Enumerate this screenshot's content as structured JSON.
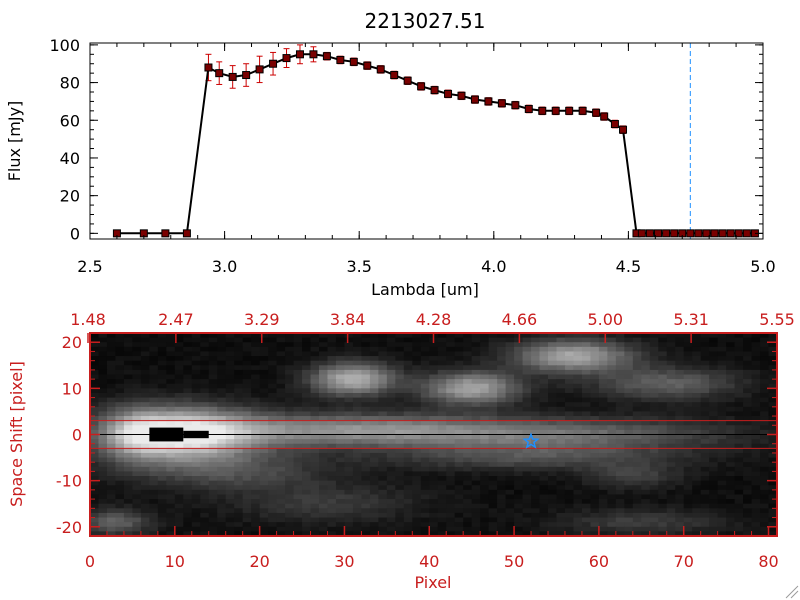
{
  "colors": {
    "spectrum_line": "#000000",
    "marker_fill": "#7a0000",
    "error_bar": "#cc0000",
    "cutoff_line": "#1e90ff",
    "image_axis": "#c81e1e",
    "aperture_line": "#c81e1e",
    "source_marker": "#1e90ff"
  },
  "chart_data": [
    {
      "type": "line",
      "title": "2213027.51",
      "xlabel": "Lambda [um]",
      "ylabel": "Flux [mJy]",
      "xlim": [
        2.5,
        5.0
      ],
      "ylim": [
        -3,
        101
      ],
      "x_ticks": [
        "2.5",
        "3.0",
        "3.5",
        "4.0",
        "4.5",
        "5.0"
      ],
      "y_ticks": [
        "0",
        "20",
        "40",
        "60",
        "80",
        "100"
      ],
      "cutoff_wavelength": 4.73,
      "series": [
        {
          "x": [
            2.6,
            2.7,
            2.78,
            2.86,
            2.94,
            2.98,
            3.03,
            3.08,
            3.13,
            3.18,
            3.23,
            3.28,
            3.33,
            3.38,
            3.43,
            3.48,
            3.53,
            3.58,
            3.63,
            3.68,
            3.73,
            3.78,
            3.83,
            3.88,
            3.93,
            3.98,
            4.03,
            4.08,
            4.13,
            4.18,
            4.23,
            4.28,
            4.33,
            4.38,
            4.41,
            4.45,
            4.48,
            4.53,
            4.55,
            4.58,
            4.61,
            4.64,
            4.67,
            4.7,
            4.73,
            4.76,
            4.79,
            4.82,
            4.85,
            4.88,
            4.91,
            4.94,
            4.97
          ],
          "y": [
            0,
            0,
            0,
            0,
            88,
            85,
            83,
            84,
            87,
            90,
            93,
            95,
            95,
            94,
            92,
            91,
            89,
            87,
            84,
            81,
            78,
            76,
            74,
            73,
            71,
            70,
            69,
            68,
            66,
            65,
            65,
            65,
            65,
            64,
            62,
            58,
            55,
            0,
            0,
            0,
            0,
            0,
            0,
            0,
            0,
            0,
            0,
            0,
            0,
            0,
            0,
            0,
            0
          ],
          "err": [
            0,
            0,
            0,
            0,
            7,
            6,
            6,
            6,
            7,
            6,
            5,
            5,
            4,
            2,
            2,
            2,
            2,
            2,
            2,
            2,
            2,
            2,
            2,
            2,
            2,
            2,
            2,
            2,
            2,
            2,
            2,
            2,
            2,
            2,
            2,
            2,
            2,
            0,
            0,
            0,
            0,
            0,
            0,
            0,
            0,
            0,
            0,
            0,
            0,
            0,
            0,
            0,
            0
          ]
        }
      ]
    },
    {
      "type": "heatmap",
      "xlabel": "Pixel",
      "ylabel": "Space Shift [pixel]",
      "top_xlabel": "",
      "xlim": [
        0,
        81
      ],
      "ylim": [
        -22,
        22
      ],
      "x_ticks": [
        "0",
        "10",
        "20",
        "30",
        "40",
        "50",
        "60",
        "70",
        "80"
      ],
      "y_ticks": [
        "-20",
        "-10",
        "0",
        "10",
        "20"
      ],
      "top_ticks": [
        "1.48",
        "2.47",
        "3.29",
        "3.84",
        "4.28",
        "4.66",
        "5.00",
        "5.31",
        "5.55"
      ],
      "aperture_y": [
        3,
        -3
      ],
      "trace_y": 0,
      "source_marker": {
        "x": 52,
        "y": -1.5
      },
      "sources": [
        {
          "x": 11,
          "y": 0,
          "sx": 6,
          "sy": 4,
          "amp": 0.95
        },
        {
          "x": 30,
          "y": 1,
          "sx": 12,
          "sy": 2.5,
          "amp": 0.5
        },
        {
          "x": 55,
          "y": 0,
          "sx": 14,
          "sy": 2.5,
          "amp": 0.4
        },
        {
          "x": 31,
          "y": 12,
          "sx": 3.5,
          "sy": 2.5,
          "amp": 0.7
        },
        {
          "x": 45,
          "y": 10,
          "sx": 4,
          "sy": 2.5,
          "amp": 0.65
        },
        {
          "x": 57,
          "y": 17,
          "sx": 5,
          "sy": 2.5,
          "amp": 0.65
        },
        {
          "x": 68,
          "y": 11,
          "sx": 6,
          "sy": 2.5,
          "amp": 0.35
        },
        {
          "x": 5,
          "y": 0,
          "sx": 3,
          "sy": 4,
          "amp": 0.35
        },
        {
          "x": 17,
          "y": -8,
          "sx": 8,
          "sy": 3,
          "amp": 0.25
        },
        {
          "x": 52,
          "y": -5,
          "sx": 12,
          "sy": 2,
          "amp": 0.25
        },
        {
          "x": 3,
          "y": -19,
          "sx": 3,
          "sy": 2,
          "amp": 0.35
        },
        {
          "x": 28,
          "y": -15,
          "sx": 8,
          "sy": 3,
          "amp": 0.18
        },
        {
          "x": 64,
          "y": -9,
          "sx": 4,
          "sy": 2,
          "amp": 0.2
        },
        {
          "x": 65,
          "y": -19,
          "sx": 7,
          "sy": 2,
          "amp": 0.2
        }
      ]
    }
  ]
}
